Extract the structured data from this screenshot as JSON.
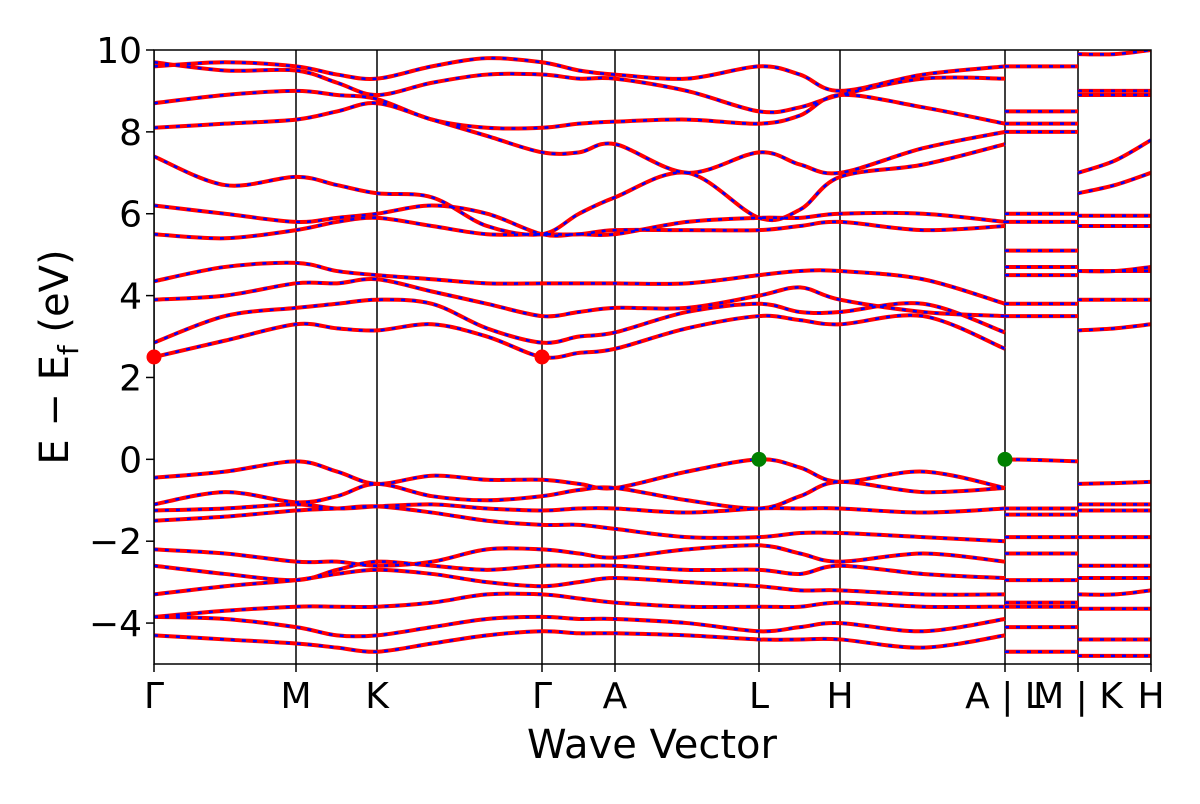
{
  "chart_data": {
    "type": "line",
    "xlabel": "Wave Vector",
    "ylabel": [
      "E − E",
      "f",
      " (eV)"
    ],
    "xlim": [
      0,
      9.97
    ],
    "ylim": [
      -5,
      10
    ],
    "xticks": [
      {
        "value": 0,
        "label": "Γ"
      },
      {
        "value": 1.42,
        "label": "M"
      },
      {
        "value": 2.23,
        "label": "K"
      },
      {
        "value": 3.88,
        "label": "Γ"
      },
      {
        "value": 4.61,
        "label": "A"
      },
      {
        "value": 6.05,
        "label": "L"
      },
      {
        "value": 6.86,
        "label": "H"
      },
      {
        "value": 8.51,
        "label": "A | L"
      },
      {
        "value": 9.24,
        "label": "M | K"
      },
      {
        "value": 9.97,
        "label": "H"
      }
    ],
    "yticks": [
      {
        "value": -4,
        "label": "−4"
      },
      {
        "value": -2,
        "label": "−2"
      },
      0,
      2,
      4,
      6,
      8,
      10
    ],
    "channel_colors": [
      "#ff0000",
      "#0000ff"
    ],
    "x": [
      0,
      0.71,
      1.42,
      1.83,
      2.23,
      2.78,
      3.33,
      3.88,
      4.25,
      4.61,
      5.33,
      6.05,
      6.46,
      6.86,
      7.69,
      8.51,
      8.51,
      8.51,
      8.88,
      9.24,
      9.24,
      9.24,
      9.61,
      9.97
    ],
    "series": [
      {
        "values": [
          -0.45,
          -0.3,
          -0.05,
          -0.3,
          -0.6,
          -0.4,
          -0.5,
          -0.5,
          -0.6,
          -0.7,
          -0.3,
          0,
          -0.2,
          -0.55,
          -0.3,
          -0.7,
          null,
          0,
          -0.02,
          -0.05,
          null,
          -0.6,
          -0.58,
          -0.55
        ]
      },
      {
        "values": [
          -1.1,
          -0.8,
          -1.05,
          -0.9,
          -0.6,
          -0.9,
          -1.0,
          -0.9,
          -0.75,
          -0.7,
          -1.0,
          -1.2,
          -0.9,
          -0.55,
          -0.8,
          -0.7,
          null,
          -1.2,
          -1.2,
          -1.2,
          null,
          -1.1,
          -1.1,
          -1.1
        ]
      },
      {
        "values": [
          -1.25,
          -1.2,
          -1.1,
          -1.2,
          -1.15,
          -1.1,
          -1.2,
          -1.25,
          -1.2,
          -1.2,
          -1.3,
          -1.2,
          -1.2,
          -1.2,
          -1.3,
          -1.2,
          null,
          -1.35,
          -1.35,
          -1.35,
          null,
          -1.25,
          -1.25,
          -1.25
        ]
      },
      {
        "values": [
          -1.5,
          -1.4,
          -1.25,
          -1.2,
          -1.15,
          -1.3,
          -1.5,
          -1.6,
          -1.6,
          -1.7,
          -1.9,
          -1.9,
          -1.8,
          -1.8,
          -1.9,
          -2.0,
          null,
          -1.9,
          -1.9,
          -1.9,
          null,
          -1.9,
          -1.9,
          -1.9
        ]
      },
      {
        "values": [
          -2.2,
          -2.3,
          -2.5,
          -2.5,
          -2.6,
          -2.5,
          -2.2,
          -2.2,
          -2.3,
          -2.4,
          -2.2,
          -2.1,
          -2.3,
          -2.5,
          -2.3,
          -2.5,
          null,
          -2.3,
          -2.3,
          -2.3,
          null,
          -2.6,
          -2.6,
          -2.6
        ]
      },
      {
        "values": [
          -2.6,
          -2.8,
          -2.95,
          -2.7,
          -2.5,
          -2.6,
          -2.7,
          -2.6,
          -2.6,
          -2.6,
          -2.7,
          -2.7,
          -2.8,
          -2.6,
          -2.8,
          -2.9,
          null,
          -2.95,
          -2.95,
          -2.95,
          null,
          -2.9,
          -2.9,
          -2.9
        ]
      },
      {
        "values": [
          -3.3,
          -3.1,
          -2.95,
          -2.8,
          -2.7,
          -2.8,
          -3.0,
          -3.1,
          -3.0,
          -2.9,
          -3.0,
          -3.1,
          -3.2,
          -3.2,
          -3.3,
          -3.3,
          null,
          -3.5,
          -3.5,
          -3.5,
          null,
          -3.3,
          -3.3,
          -3.2
        ]
      },
      {
        "values": [
          -3.85,
          -3.7,
          -3.6,
          -3.6,
          -3.6,
          -3.5,
          -3.3,
          -3.3,
          -3.4,
          -3.5,
          -3.6,
          -3.6,
          -3.6,
          -3.5,
          -3.6,
          -3.6,
          null,
          -3.6,
          -3.6,
          -3.6,
          null,
          -3.65,
          -3.65,
          -3.65
        ]
      },
      {
        "values": [
          -3.85,
          -3.9,
          -4.1,
          -4.3,
          -4.3,
          -4.1,
          -3.9,
          -3.85,
          -3.9,
          -3.9,
          -4.0,
          -4.2,
          -4.1,
          -4.0,
          -4.2,
          -3.9,
          null,
          -4.1,
          -4.1,
          -4.1,
          null,
          -4.4,
          -4.4,
          -4.4
        ]
      },
      {
        "values": [
          -4.3,
          -4.4,
          -4.5,
          -4.6,
          -4.7,
          -4.5,
          -4.3,
          -4.2,
          -4.25,
          -4.25,
          -4.3,
          -4.4,
          -4.4,
          -4.4,
          -4.6,
          -4.3,
          null,
          -4.7,
          -4.7,
          -4.7,
          null,
          -4.8,
          -4.8,
          -4.8
        ]
      },
      {
        "values": [
          2.5,
          2.9,
          3.3,
          3.2,
          3.15,
          3.3,
          3.0,
          2.5,
          2.6,
          2.7,
          3.2,
          3.5,
          3.4,
          3.3,
          3.5,
          2.7,
          null,
          3.5,
          3.5,
          3.5,
          null,
          3.15,
          3.2,
          3.3
        ]
      },
      {
        "values": [
          2.85,
          3.5,
          3.7,
          3.8,
          3.9,
          3.8,
          3.2,
          2.85,
          3.0,
          3.1,
          3.6,
          3.8,
          3.6,
          3.6,
          3.8,
          3.1,
          null,
          3.8,
          3.8,
          3.8,
          null,
          3.9,
          3.9,
          3.9
        ]
      },
      {
        "values": [
          3.9,
          4.0,
          4.3,
          4.3,
          4.4,
          4.1,
          3.8,
          3.5,
          3.6,
          3.7,
          3.7,
          4.0,
          4.2,
          3.9,
          3.6,
          3.5,
          null,
          4.5,
          4.5,
          4.5,
          null,
          4.6,
          4.6,
          4.7
        ]
      },
      {
        "values": [
          4.35,
          4.7,
          4.8,
          4.6,
          4.5,
          4.4,
          4.3,
          4.3,
          4.3,
          4.3,
          4.3,
          4.5,
          4.6,
          4.6,
          4.4,
          3.8,
          null,
          4.7,
          4.7,
          4.7,
          null,
          4.6,
          4.6,
          4.6
        ]
      },
      {
        "values": [
          5.5,
          5.4,
          5.6,
          5.8,
          5.9,
          5.7,
          5.5,
          5.5,
          5.5,
          5.6,
          5.6,
          5.6,
          5.7,
          5.8,
          5.6,
          5.7,
          null,
          5.1,
          5.1,
          5.1,
          null,
          5.7,
          5.7,
          5.7
        ]
      },
      {
        "values": [
          6.2,
          6.0,
          5.8,
          5.9,
          6.0,
          6.2,
          6.0,
          5.5,
          5.5,
          5.5,
          5.8,
          5.9,
          5.9,
          6.0,
          6.0,
          5.8,
          null,
          5.8,
          5.8,
          5.8,
          null,
          5.95,
          5.95,
          5.95
        ]
      },
      {
        "values": [
          7.4,
          6.7,
          6.9,
          6.7,
          6.5,
          6.4,
          5.7,
          5.5,
          6.0,
          6.4,
          7.0,
          5.9,
          6.1,
          6.9,
          7.2,
          7.7,
          null,
          6.0,
          6.0,
          6.0,
          null,
          6.5,
          6.7,
          7.0
        ]
      },
      {
        "values": [
          8.1,
          8.2,
          8.3,
          8.5,
          8.7,
          8.3,
          7.9,
          7.5,
          7.5,
          7.7,
          7.0,
          7.5,
          7.2,
          7.0,
          7.6,
          8.0,
          null,
          8.0,
          8.0,
          8.0,
          null,
          7.0,
          7.3,
          7.8
        ]
      },
      {
        "values": [
          8.7,
          8.9,
          9.0,
          8.9,
          8.8,
          8.3,
          8.1,
          8.1,
          8.2,
          8.25,
          8.3,
          8.2,
          8.4,
          8.9,
          8.6,
          8.2,
          null,
          8.2,
          8.2,
          8.2,
          null,
          8.9,
          8.9,
          8.9
        ]
      },
      {
        "values": [
          9.7,
          9.5,
          9.5,
          9.2,
          8.9,
          9.2,
          9.4,
          9.4,
          9.3,
          9.3,
          9.0,
          8.5,
          8.6,
          8.9,
          9.3,
          9.3,
          null,
          8.5,
          8.5,
          8.5,
          null,
          9.0,
          9.0,
          9.0
        ]
      },
      {
        "values": [
          9.6,
          9.7,
          9.6,
          9.4,
          9.3,
          9.6,
          9.8,
          9.7,
          9.5,
          9.4,
          9.3,
          9.6,
          9.4,
          9.0,
          9.4,
          9.6,
          null,
          9.6,
          9.6,
          9.6,
          null,
          9.9,
          9.9,
          10.0
        ]
      }
    ],
    "markers": [
      {
        "x": 0,
        "y": 2.5,
        "color": "#ff0000"
      },
      {
        "x": 3.88,
        "y": 2.5,
        "color": "#ff0000"
      },
      {
        "x": 6.05,
        "y": 0,
        "color": "#008000"
      },
      {
        "x": 8.51,
        "y": 0,
        "color": "#008000"
      }
    ]
  }
}
